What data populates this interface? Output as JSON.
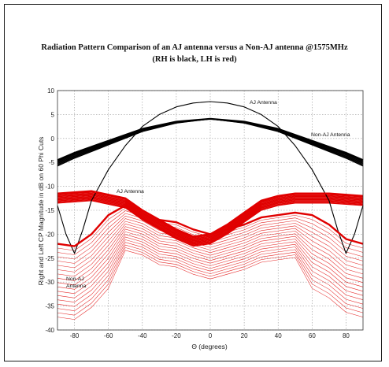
{
  "chart_data": {
    "type": "line",
    "title": "Radiation Pattern Comparison of an AJ antenna versus a Non-AJ antenna @1575MHz",
    "subtitle": "(RH is black, LH is red)",
    "xlabel": "Θ (degrees)",
    "ylabel": "Right and Left CP Magnitude in dB on 60 Phi Cuts",
    "xlim": [
      -90,
      90
    ],
    "ylim": [
      -40,
      10
    ],
    "xticks": [
      -80,
      -60,
      -40,
      -20,
      0,
      20,
      40,
      60,
      80
    ],
    "yticks": [
      10,
      5,
      0,
      -5,
      -10,
      -15,
      -20,
      -25,
      -30,
      -35,
      -40
    ],
    "grid": true,
    "series": [
      {
        "name": "AJ Antenna",
        "color": "#000000",
        "x": [
          -90,
          -85,
          -80,
          -75,
          -70,
          -60,
          -50,
          -40,
          -30,
          -20,
          -10,
          0,
          10,
          20,
          30,
          40,
          50,
          60,
          70,
          75,
          80,
          85,
          90
        ],
        "y": [
          -14,
          -20,
          -24,
          -19,
          -13,
          -6.5,
          -1.5,
          2.5,
          5,
          6.6,
          7.4,
          7.7,
          7.4,
          6.6,
          5,
          2.5,
          -1.5,
          -6.5,
          -13,
          -19,
          -24,
          -20,
          -14
        ]
      },
      {
        "name": "Non-AJ Antenna",
        "color": "#000000",
        "x": [
          -90,
          -80,
          -60,
          -40,
          -20,
          0,
          20,
          40,
          60,
          80,
          90
        ],
        "y": [
          -4.5,
          -3,
          -0.5,
          2,
          3.5,
          4.1,
          3.5,
          2,
          -0.5,
          -3,
          -4.5
        ]
      },
      {
        "name": "AJ Antenna",
        "color": "#e00000",
        "x": [
          -90,
          -70,
          -50,
          -40,
          -30,
          -20,
          -10,
          0,
          10,
          20,
          30,
          40,
          50,
          70,
          90
        ],
        "y": [
          -11.5,
          -11,
          -12.5,
          -15,
          -17,
          -19,
          -20.5,
          -20,
          -18,
          -15.5,
          -13,
          -12,
          -11.5,
          -11.5,
          -12
        ]
      },
      {
        "name": "Non-AJ Antenna",
        "color": "#e00000",
        "x": [
          -90,
          -80,
          -70,
          -60,
          -50,
          -40,
          -30,
          -20,
          -10,
          0,
          10,
          20,
          30,
          40,
          50,
          60,
          70,
          80,
          90
        ],
        "y": [
          -22,
          -22.5,
          -20,
          -16,
          -14,
          -15,
          -17,
          -17.5,
          -19,
          -20,
          -19,
          -18,
          -16.5,
          -16,
          -15.5,
          -16,
          -18,
          -21,
          -22
        ]
      }
    ],
    "annotations": [
      "AJ Antenna",
      "Non-AJ Antenna",
      "AJ Antenna",
      "Non-AJ Antenna"
    ]
  }
}
